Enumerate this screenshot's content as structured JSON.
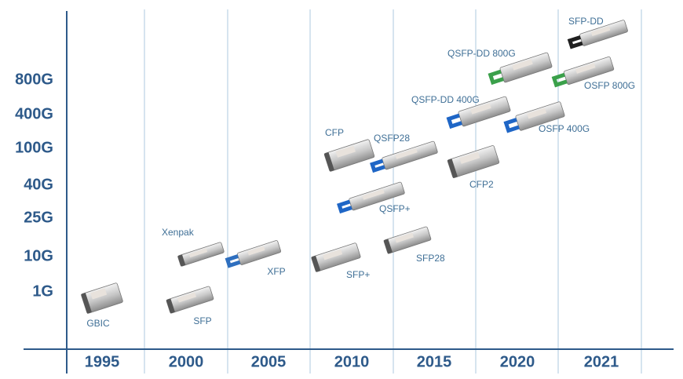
{
  "y_axis": {
    "labels": [
      "800G",
      "400G",
      "100G",
      "40G",
      "25G",
      "10G",
      "1G"
    ]
  },
  "x_axis": {
    "labels": [
      "1995",
      "2000",
      "2005",
      "2010",
      "2015",
      "2020",
      "2021"
    ]
  },
  "modules": [
    {
      "label": "GBIC"
    },
    {
      "label": "SFP"
    },
    {
      "label": "Xenpak"
    },
    {
      "label": "XFP"
    },
    {
      "label": "SFP+"
    },
    {
      "label": "CFP"
    },
    {
      "label": "QSFP28"
    },
    {
      "label": "QSFP+"
    },
    {
      "label": "SFP28"
    },
    {
      "label": "CFP2"
    },
    {
      "label": "QSFP-DD 400G"
    },
    {
      "label": "QSFP-DD 800G"
    },
    {
      "label": "OSFP 400G"
    },
    {
      "label": "SFP-DD"
    },
    {
      "label": "OSFP 800G"
    }
  ]
}
